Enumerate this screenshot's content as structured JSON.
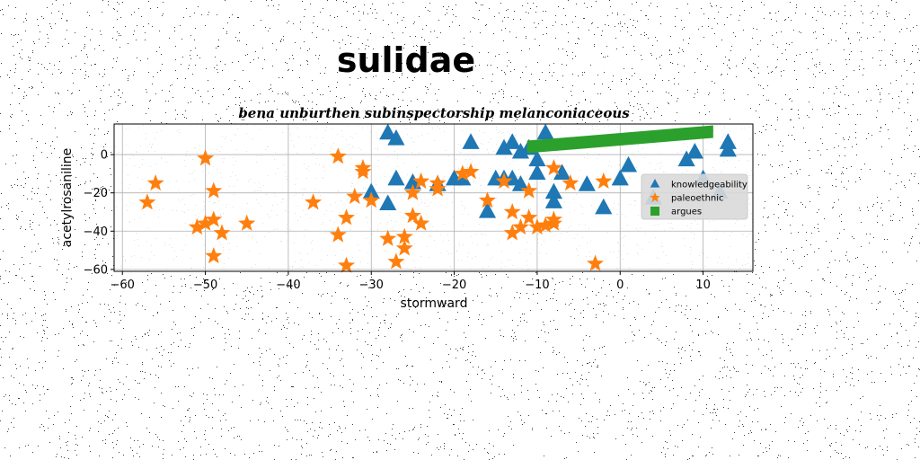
{
  "chart_data": {
    "type": "scatter",
    "suptitle": "sulidae",
    "title": "bena unburthen subinspectorship melanconiaceous",
    "xlabel": "stormward",
    "ylabel": "acetylrosaniline",
    "xlim": [
      -61,
      16
    ],
    "ylim": [
      -61,
      16
    ],
    "xticks": [
      -60,
      -50,
      -40,
      -30,
      -20,
      -10,
      0,
      10
    ],
    "yticks": [
      0,
      -20,
      -40,
      -60
    ],
    "grid": true,
    "legend_position": "center-right",
    "series": [
      {
        "name": "knowledgeability",
        "marker": "triangle",
        "color": "#1f77b4",
        "points": [
          [
            -28,
            11
          ],
          [
            -27,
            8
          ],
          [
            -18,
            6
          ],
          [
            -14,
            3
          ],
          [
            -13,
            6
          ],
          [
            -12,
            1
          ],
          [
            -11,
            3
          ],
          [
            -9,
            11
          ],
          [
            -10,
            -3
          ],
          [
            -30,
            -20
          ],
          [
            -28,
            -26
          ],
          [
            -27,
            -13
          ],
          [
            -25,
            -15
          ],
          [
            -22,
            -16
          ],
          [
            -20,
            -13
          ],
          [
            -19,
            -13
          ],
          [
            -16,
            -30
          ],
          [
            -15,
            -13
          ],
          [
            -14,
            -13
          ],
          [
            -13,
            -13
          ],
          [
            -12,
            -16
          ],
          [
            -10,
            -10
          ],
          [
            -8,
            -20
          ],
          [
            -8,
            -25
          ],
          [
            -7,
            -10
          ],
          [
            -4,
            -16
          ],
          [
            -2,
            -28
          ],
          [
            0,
            -13
          ],
          [
            1,
            -6
          ],
          [
            4,
            -23
          ],
          [
            8,
            -3
          ],
          [
            9,
            1
          ],
          [
            10,
            -13
          ],
          [
            13,
            6
          ],
          [
            13,
            2
          ],
          [
            12,
            -20
          ]
        ]
      },
      {
        "name": "paleoethnic",
        "marker": "star",
        "color": "#ff7f0e",
        "points": [
          [
            -57,
            -25
          ],
          [
            -56,
            -15
          ],
          [
            -51,
            -38
          ],
          [
            -50,
            -36
          ],
          [
            -50,
            -2
          ],
          [
            -49,
            -34
          ],
          [
            -49,
            -19
          ],
          [
            -49,
            -53
          ],
          [
            -48,
            -41
          ],
          [
            -45,
            -36
          ],
          [
            -37,
            -25
          ],
          [
            -34,
            -42
          ],
          [
            -34,
            -1
          ],
          [
            -33,
            -33
          ],
          [
            -33,
            -58
          ],
          [
            -32,
            -22
          ],
          [
            -31,
            -7
          ],
          [
            -31,
            -9
          ],
          [
            -30,
            -24
          ],
          [
            -28,
            -44
          ],
          [
            -27,
            -56
          ],
          [
            -26,
            -43
          ],
          [
            -26,
            -49
          ],
          [
            -25,
            -20
          ],
          [
            -25,
            -32
          ],
          [
            -24,
            -14
          ],
          [
            -24,
            -36
          ],
          [
            -22,
            -18
          ],
          [
            -22,
            -15
          ],
          [
            -19,
            -10
          ],
          [
            -18,
            -9
          ],
          [
            -16,
            -24
          ],
          [
            -14,
            -14
          ],
          [
            -13,
            -30
          ],
          [
            -13,
            -41
          ],
          [
            -12,
            -38
          ],
          [
            -11,
            -33
          ],
          [
            -11,
            -19
          ],
          [
            -10,
            -38
          ],
          [
            -9,
            -37
          ],
          [
            -8,
            -34
          ],
          [
            -8,
            -36
          ],
          [
            -8,
            -7
          ],
          [
            -6,
            -15
          ],
          [
            -3,
            -57
          ],
          [
            -2,
            -14
          ]
        ]
      },
      {
        "name": "argues",
        "marker": "square",
        "color": "#2ca02c",
        "segment": {
          "x_start": -11,
          "x_end": 11,
          "y_start": 4,
          "y_end": 12
        }
      }
    ]
  }
}
